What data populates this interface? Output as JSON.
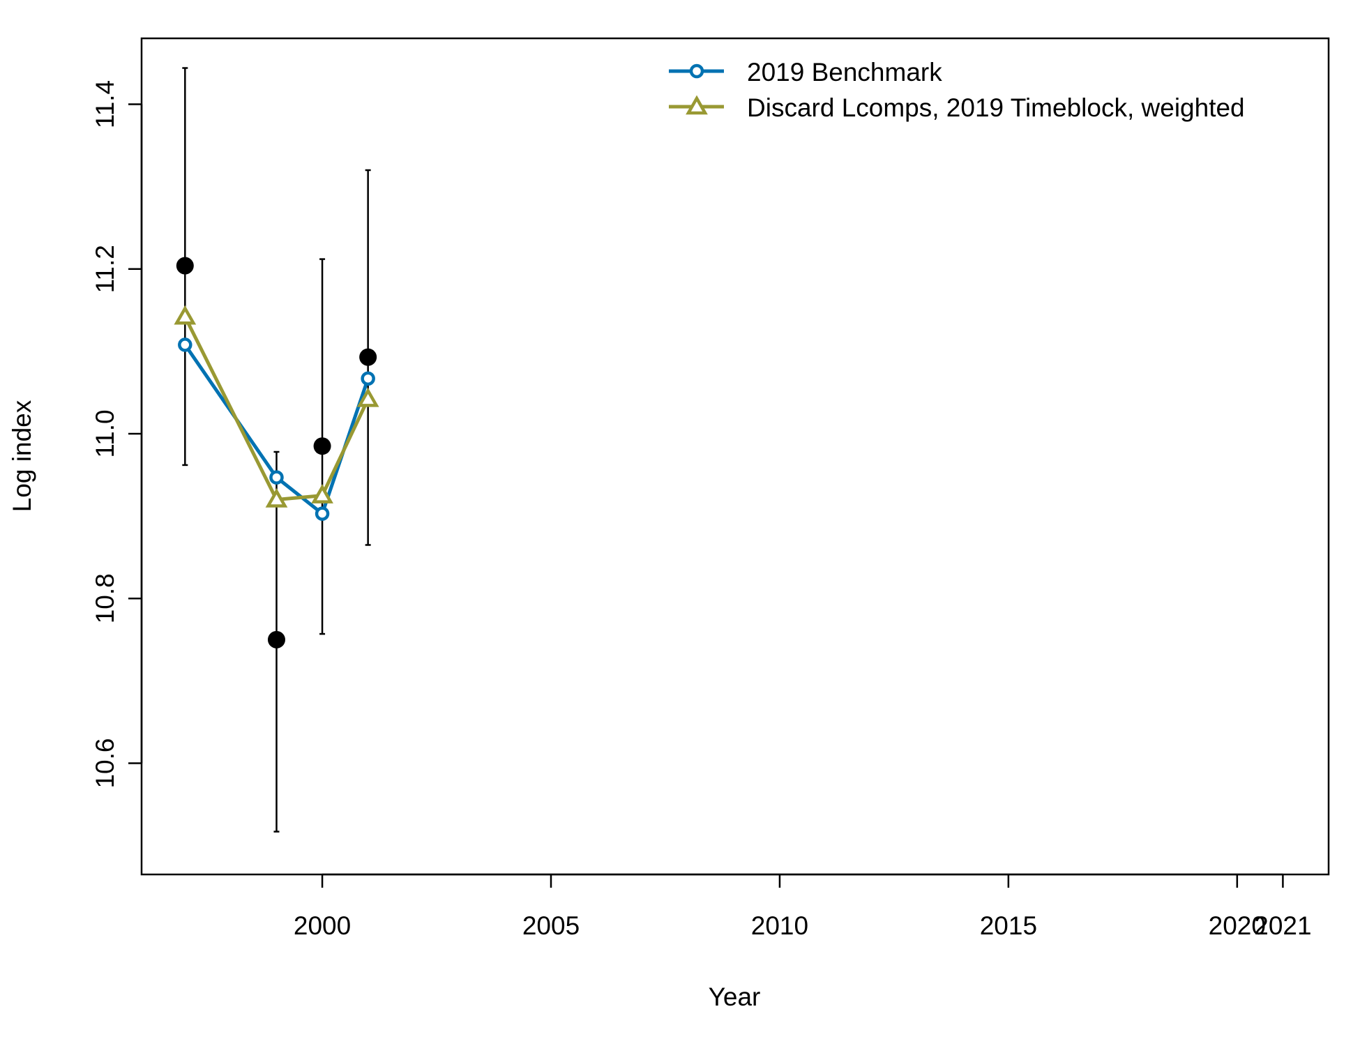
{
  "chart_data": {
    "type": "line",
    "xlabel": "Year",
    "ylabel": "Log index",
    "xlim": [
      1996.05,
      2022.0
    ],
    "ylim": [
      10.465,
      11.48
    ],
    "x_ticks": [
      2000,
      2005,
      2010,
      2015,
      2020,
      2021
    ],
    "x_tick_labels": [
      "2000",
      "2005",
      "2010",
      "2015",
      "2020",
      "2021"
    ],
    "y_ticks": [
      10.6,
      10.8,
      11.0,
      11.2,
      11.4
    ],
    "y_tick_labels": [
      "10.6",
      "10.8",
      "11.0",
      "11.2",
      "11.4"
    ],
    "grid": false,
    "legend_position": "top-right",
    "observed": {
      "x": [
        1997,
        1999,
        2000,
        2001
      ],
      "y": [
        11.204,
        10.75,
        10.985,
        11.093
      ],
      "lower": [
        10.962,
        10.517,
        10.757,
        10.865
      ],
      "upper": [
        11.444,
        10.978,
        11.212,
        11.32
      ],
      "color": "#000000"
    },
    "series": [
      {
        "name": "2019 Benchmark",
        "x": [
          1997,
          1999,
          2000,
          2001
        ],
        "y": [
          11.108,
          10.947,
          10.903,
          11.067
        ],
        "marker": "circle",
        "color": "#0072B2"
      },
      {
        "name": "Discard Lcomps, 2019 Timeblock, weighted",
        "x": [
          1997,
          1999,
          2000,
          2001
        ],
        "y": [
          11.142,
          10.92,
          10.925,
          11.042
        ],
        "marker": "triangle",
        "color": "#999933"
      }
    ]
  }
}
